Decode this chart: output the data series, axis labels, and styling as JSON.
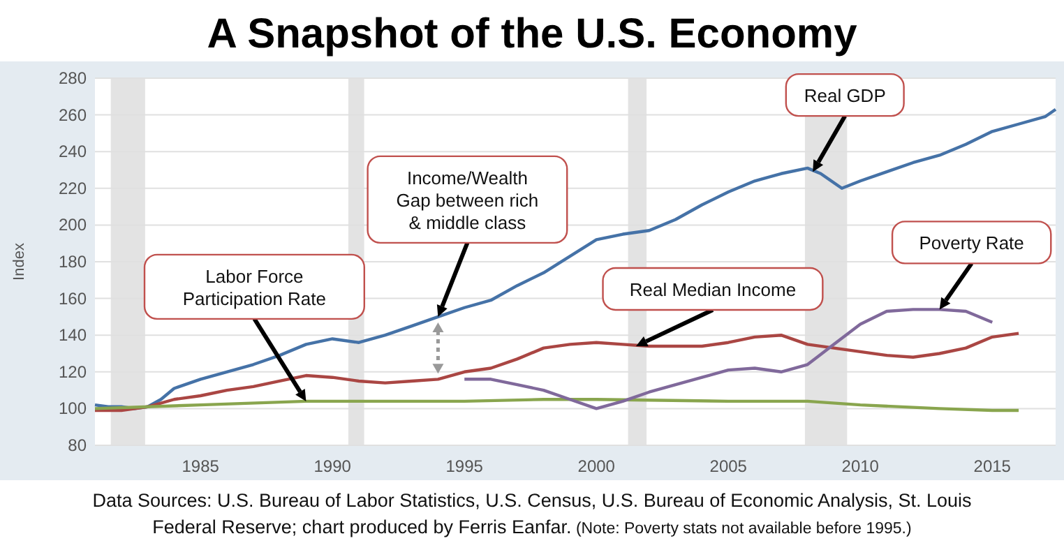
{
  "chart_data": {
    "type": "line",
    "title": "A Snapshot of the U.S. Economy",
    "ylabel": "Index",
    "xlim": [
      1981,
      2017.4
    ],
    "xticks": [
      1985,
      1990,
      1995,
      2000,
      2005,
      2010,
      2015
    ],
    "ylim": [
      80,
      280
    ],
    "yticks": [
      80,
      100,
      120,
      140,
      160,
      180,
      200,
      220,
      240,
      260,
      280
    ],
    "grid": "y",
    "marker": "none",
    "line_style": "solid",
    "series": [
      {
        "color": "#4572a7",
        "x": [
          1981,
          1981.5,
          1982,
          1982.5,
          1983,
          1983.5,
          1984,
          1985,
          1986,
          1987,
          1988,
          1989,
          1990,
          1991,
          1992,
          1993,
          1994,
          1995,
          1996,
          1997,
          1998,
          1999,
          2000,
          2001,
          2002,
          2003,
          2004,
          2005,
          2006,
          2007,
          2008,
          2008.5,
          2009.3,
          2010,
          2011,
          2012,
          2013,
          2014,
          2015,
          2016,
          2017,
          2017.4
        ],
        "values": [
          102,
          101,
          101,
          100,
          101,
          105,
          111,
          116,
          120,
          124,
          129,
          135,
          138,
          136,
          140,
          145,
          150,
          155,
          159,
          167,
          174,
          183,
          192,
          195,
          197,
          203,
          211,
          218,
          224,
          228,
          231,
          228,
          220,
          224,
          229,
          234,
          238,
          244,
          251,
          255,
          259,
          263
        ]
      },
      {
        "color": "#aa4643",
        "x": [
          1981,
          1982,
          1983,
          1984,
          1985,
          1986,
          1987,
          1988,
          1989,
          1990,
          1991,
          1992,
          1993,
          1994,
          1995,
          1996,
          1997,
          1998,
          1999,
          2000,
          2001,
          2002,
          2003,
          2004,
          2005,
          2006,
          2007,
          2008,
          2009,
          2010,
          2011,
          2012,
          2013,
          2014,
          2015,
          2016
        ],
        "values": [
          99,
          99,
          101,
          105,
          107,
          110,
          112,
          115,
          118,
          117,
          115,
          114,
          115,
          116,
          120,
          122,
          127,
          133,
          135,
          136,
          135,
          134,
          134,
          134,
          136,
          139,
          140,
          135,
          133,
          131,
          129,
          128,
          130,
          133,
          139,
          141
        ]
      },
      {
        "color": "#89a54e",
        "x": [
          1981,
          1985,
          1989,
          1995,
          1998,
          2000,
          2005,
          2008,
          2010,
          2013,
          2015,
          2016
        ],
        "values": [
          100,
          102,
          104,
          104,
          105,
          105,
          104,
          104,
          102,
          100,
          99,
          99
        ]
      },
      {
        "color": "#80699b",
        "x": [
          1995,
          1996,
          1997,
          1998,
          1999,
          2000,
          2001,
          2002,
          2003,
          2004,
          2005,
          2006,
          2007,
          2008,
          2009,
          2010,
          2011,
          2012,
          2013,
          2014,
          2015
        ],
        "values": [
          116,
          116,
          113,
          110,
          105,
          100,
          104,
          109,
          113,
          117,
          121,
          122,
          120,
          124,
          135,
          146,
          153,
          154,
          154,
          153,
          147
        ]
      }
    ],
    "bands": [
      {
        "axis": "x",
        "from": 1981.6,
        "to": 1982.9,
        "color": "#e3e3e3"
      },
      {
        "axis": "x",
        "from": 1990.6,
        "to": 1991.2,
        "color": "#e3e3e3"
      },
      {
        "axis": "x",
        "from": 2001.2,
        "to": 2001.9,
        "color": "#e3e3e3"
      },
      {
        "axis": "x",
        "from": 2007.9,
        "to": 2009.5,
        "color": "#e3e3e3"
      }
    ],
    "annotations": [
      {
        "text": "Labor Force\nParticipation Rate",
        "x": 1989,
        "y": 104
      },
      {
        "text": "Income/Wealth\nGap between rich\n& middle class",
        "x": 1994,
        "y": 150
      },
      {
        "text": "Real GDP",
        "x": 2008.2,
        "y": 229
      },
      {
        "text": "Real Median Income",
        "x": 2001.5,
        "y": 134
      },
      {
        "text": "Poverty Rate",
        "x": 2013,
        "y": 154
      },
      "Data Sources: U.S. Bureau of Labor Statistics, U.S. Census, U.S. Bureau of Economic Analysis, St. Louis Federal Reserve; chart produced by Ferris Eanfar.",
      "(Note: Poverty stats not available before 1995.)"
    ]
  }
}
